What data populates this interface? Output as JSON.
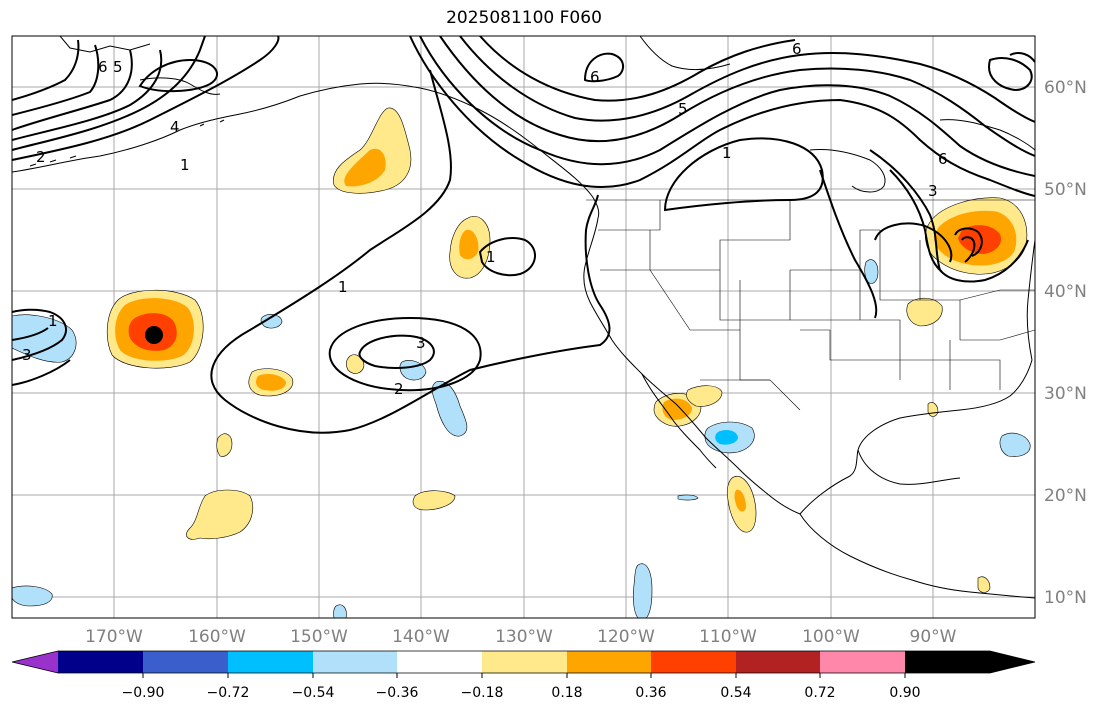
{
  "title": "2025081100 F060",
  "map": {
    "lat_labels": [
      "60°N",
      "50°N",
      "40°N",
      "30°N",
      "20°N",
      "10°N"
    ],
    "lon_labels": [
      "170°W",
      "160°W",
      "150°W",
      "140°W",
      "130°W",
      "120°W",
      "110°W",
      "100°W",
      "90°W"
    ],
    "contour_labels": [
      "6",
      "5",
      "4",
      "2",
      "1",
      "6",
      "5",
      "1",
      "6",
      "3",
      "1",
      "1",
      "3",
      "2",
      "1",
      "3",
      "6"
    ]
  },
  "colorbar": {
    "ticks": [
      "−0.90",
      "−0.72",
      "−0.54",
      "−0.36",
      "−0.18",
      "0.18",
      "0.36",
      "0.54",
      "0.72",
      "0.90"
    ],
    "colors": [
      "#9932cc",
      "#00008b",
      "#3a5fcd",
      "#00bfff",
      "#b0e0fa",
      "#ffffff",
      "#ffe98a",
      "#ffa500",
      "#ff4000",
      "#b22222",
      "#ff88aa"
    ]
  }
}
